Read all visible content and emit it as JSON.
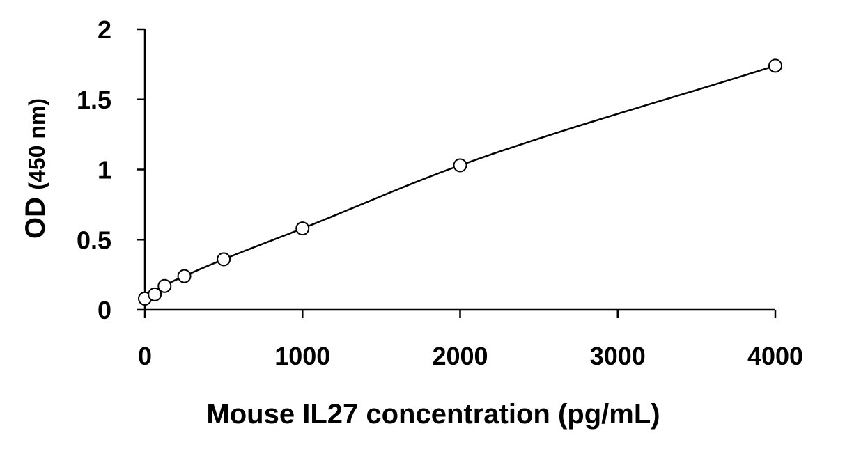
{
  "chart_data": {
    "type": "scatter",
    "title": "",
    "xlabel": "Mouse IL27 concentration (pg/mL)",
    "ylabel_main": "OD",
    "ylabel_unit": "(450 nm)",
    "xlim": [
      0,
      4000
    ],
    "ylim": [
      0,
      2
    ],
    "xticks": [
      0,
      1000,
      2000,
      3000,
      4000
    ],
    "yticks": [
      0,
      0.5,
      1,
      1.5,
      2
    ],
    "xtick_labels": [
      "0",
      "1000",
      "2000",
      "3000",
      "4000"
    ],
    "ytick_labels": [
      "0",
      "0.5",
      "1",
      "1.5",
      "2"
    ],
    "grid": false,
    "legend": "none",
    "marker": "open-circle",
    "fit_line": "smooth-curve",
    "color": "#000000",
    "series": [
      {
        "x": [
          0,
          62.5,
          125,
          250,
          500,
          1000,
          2000,
          4000
        ],
        "y": [
          0.08,
          0.11,
          0.17,
          0.24,
          0.36,
          0.58,
          1.03,
          1.74
        ]
      }
    ]
  }
}
